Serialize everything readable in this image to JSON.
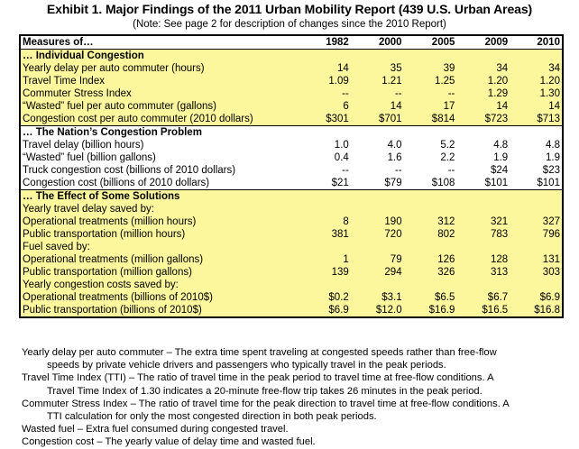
{
  "title": "Exhibit 1.  Major Findings of the 2011 Urban Mobility Report (439 U.S. Urban Areas)",
  "note": "(Note:  See page 2 for description of changes since the 2010 Report)",
  "table": {
    "header": [
      "Measures of…",
      "1982",
      "2000",
      "2005",
      "2009",
      "2010"
    ],
    "sections": [
      {
        "label": "… Individual Congestion",
        "rows": [
          {
            "label": "Yearly delay per auto commuter (hours)",
            "values": [
              "14",
              "35",
              "39",
              "34",
              "34"
            ]
          },
          {
            "label": "Travel Time Index",
            "values": [
              "1.09",
              "1.21",
              "1.25",
              "1.20",
              "1.20"
            ]
          },
          {
            "label": "Commuter Stress Index",
            "values": [
              "--",
              "--",
              "--",
              "1.29",
              "1.30"
            ]
          },
          {
            "label": " “Wasted” fuel per auto commuter (gallons)",
            "values": [
              "6",
              "14",
              "17",
              "14",
              "14"
            ]
          },
          {
            "label": "Congestion cost per auto commuter (2010 dollars)",
            "values": [
              "$301",
              "$701",
              "$814",
              "$723",
              "$713"
            ]
          }
        ]
      },
      {
        "label": "… The Nation’s Congestion Problem",
        "rows": [
          {
            "label": "Travel delay (billion hours)",
            "values": [
              "1.0",
              "4.0",
              "5.2",
              "4.8",
              "4.8"
            ]
          },
          {
            "label": "“Wasted” fuel (billion gallons)",
            "values": [
              "0.4",
              "1.6",
              "2.2",
              "1.9",
              "1.9"
            ]
          },
          {
            "label": "Truck congestion cost (billions of 2010 dollars)",
            "values": [
              "--",
              "--",
              "--",
              "$24",
              "$23"
            ]
          },
          {
            "label": "Congestion cost (billions of 2010 dollars)",
            "values": [
              "$21",
              "$79",
              "$108",
              "$101",
              "$101"
            ]
          }
        ]
      },
      {
        "label": "… The Effect of Some Solutions",
        "groups": [
          {
            "label": "Yearly travel delay saved by:",
            "rows": [
              {
                "label": "Operational treatments (million hours)",
                "values": [
                  "8",
                  "190",
                  "312",
                  "321",
                  "327"
                ]
              },
              {
                "label": "Public transportation (million hours)",
                "values": [
                  "381",
                  "720",
                  "802",
                  "783",
                  "796"
                ]
              }
            ]
          },
          {
            "label": "Fuel saved by:",
            "rows": [
              {
                "label": "Operational treatments (million gallons)",
                "values": [
                  "1",
                  "79",
                  "126",
                  "128",
                  "131"
                ]
              },
              {
                "label": "Public transportation (million gallons)",
                "values": [
                  "139",
                  "294",
                  "326",
                  "313",
                  "303"
                ]
              }
            ]
          },
          {
            "label": "Yearly congestion costs saved by:",
            "rows": [
              {
                "label": "Operational treatments (billions of 2010$)",
                "values": [
                  "$0.2",
                  "$3.1",
                  "$6.5",
                  "$6.7",
                  "$6.9"
                ]
              },
              {
                "label": "Public transportation (billions of 2010$)",
                "values": [
                  "$6.9",
                  "$12.0",
                  "$16.9",
                  "$16.5",
                  "$16.8"
                ]
              }
            ]
          }
        ]
      }
    ]
  },
  "definitions": [
    {
      "first": "Yearly delay per auto commuter – The extra time spent traveling at congested speeds rather than free-flow",
      "cont": "speeds by private vehicle drivers and passengers who typically travel in the peak periods."
    },
    {
      "first": "Travel Time Index (TTI) – The ratio of travel time in the peak period to travel time at free-flow conditions.  A",
      "cont": "Travel Time Index of 1.30 indicates a 20-minute free-flow trip takes 26 minutes in the peak period."
    },
    {
      "first": "Commuter Stress Index – The ratio of travel time for the peak direction to travel time at free-flow conditions.  A",
      "cont": "TTI calculation for only the most congested direction in both peak periods."
    },
    {
      "first": "Wasted fuel – Extra fuel consumed during congested travel.",
      "cont": ""
    },
    {
      "first": "Congestion cost – The yearly value of delay time and wasted fuel.",
      "cont": ""
    }
  ]
}
